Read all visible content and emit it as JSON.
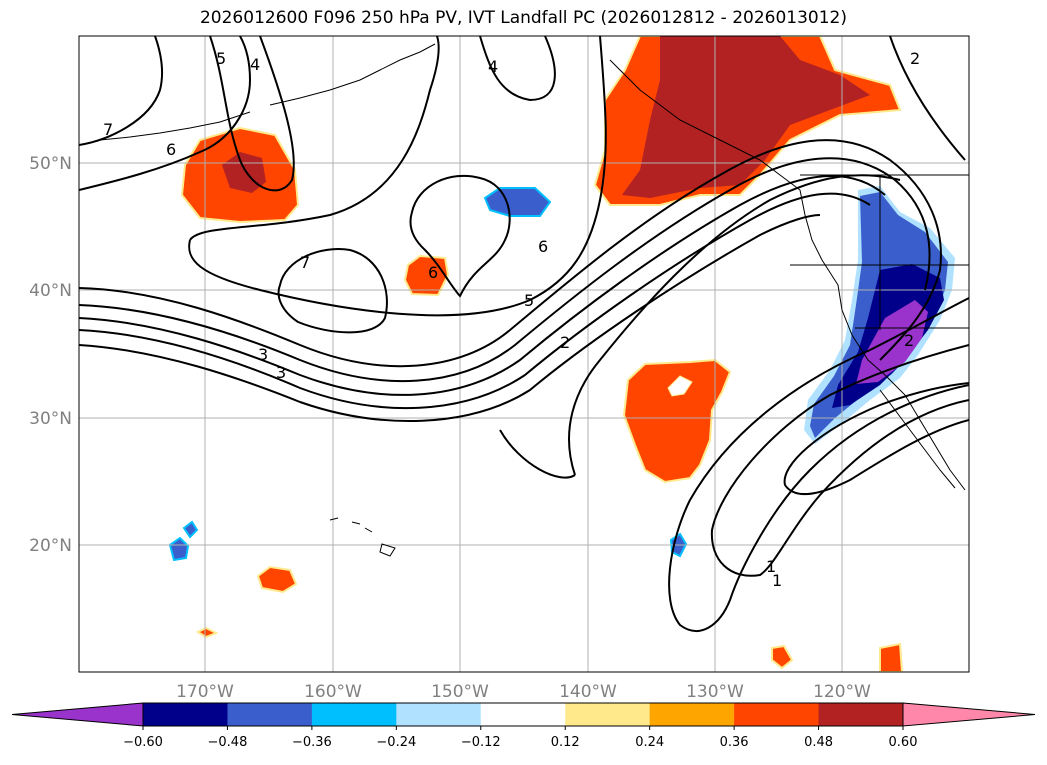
{
  "title": "2026012600 F096 250 hPa PV, IVT Landfall PC (2026012812 - 2026013012)",
  "map": {
    "lon_labels": [
      "170°W",
      "160°W",
      "150°W",
      "140°W",
      "130°W",
      "120°W"
    ],
    "lat_labels": [
      "50°N",
      "40°N",
      "30°N",
      "20°N"
    ],
    "contour_labels": [
      "7",
      "6",
      "5",
      "4",
      "3",
      "2",
      "1",
      "2",
      "7",
      "6",
      "5",
      "6",
      "4",
      "3",
      "2",
      "1"
    ]
  },
  "colorbar": {
    "ticks": [
      "−0.60",
      "−0.48",
      "−0.36",
      "−0.24",
      "−0.12",
      "0.12",
      "0.24",
      "0.36",
      "0.48",
      "0.60"
    ],
    "colors": [
      "#9933cc",
      "#00008b",
      "#3a5fcd",
      "#00bfff",
      "#b0e2ff",
      "#ffffff",
      "#ffe98a",
      "#ffa500",
      "#ff4500",
      "#b22222",
      "#ff88aa"
    ]
  }
}
